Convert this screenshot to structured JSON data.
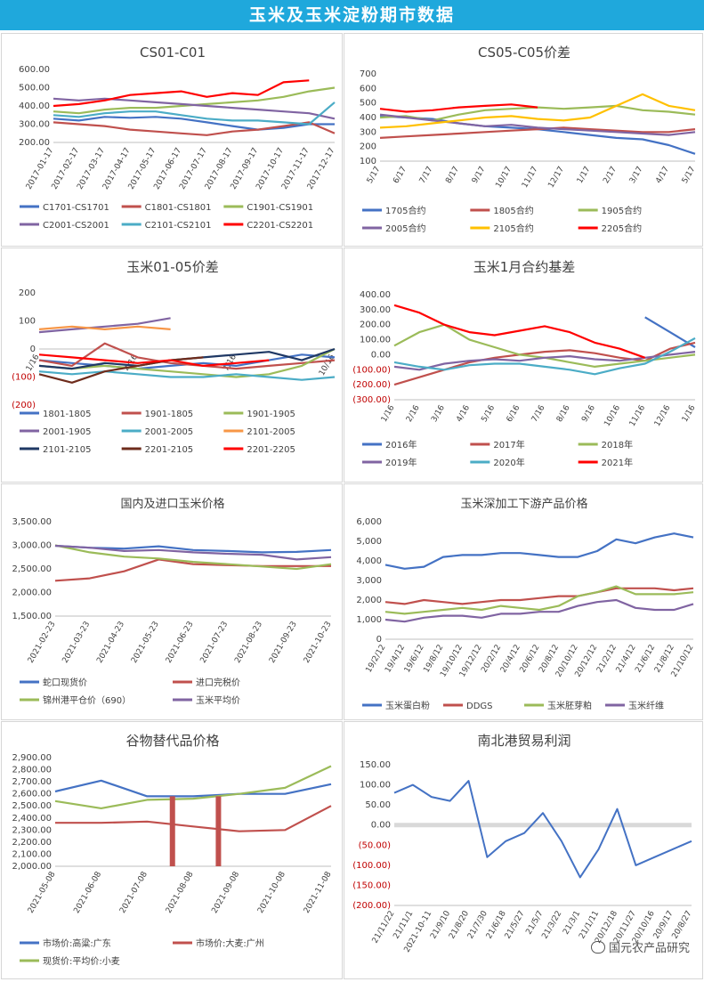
{
  "page": {
    "title": "玉米及玉米淀粉期市数据"
  },
  "watermark": {
    "text": "国元农产品研究"
  },
  "chart_data": [
    {
      "id": "p1",
      "type": "line",
      "title": "CS01-C01",
      "yticks": [
        "600.00",
        "500.00",
        "400.00",
        "300.00",
        "200.00"
      ],
      "ylim": [
        200,
        600
      ],
      "yticks_values": [
        600,
        500,
        400,
        300,
        200
      ],
      "xticks": [
        "2017-01-17",
        "2017-02-17",
        "2017-03-17",
        "2017-04-17",
        "2017-05-17",
        "2017-06-17",
        "2017-07-17",
        "2017-08-17",
        "2017-09-17",
        "2017-10-17",
        "2017-11-17",
        "2017-12-17"
      ],
      "series": [
        {
          "name": "C1701-CS1701",
          "color": "#4472c4",
          "values": [
            330,
            320,
            340,
            335,
            340,
            330,
            310,
            290,
            270,
            280,
            300,
            300
          ]
        },
        {
          "name": "C1801-CS1801",
          "color": "#c0504d",
          "values": [
            310,
            300,
            290,
            270,
            260,
            250,
            240,
            260,
            270,
            290,
            310,
            250
          ]
        },
        {
          "name": "C1901-CS1901",
          "color": "#9bbb59",
          "values": [
            370,
            360,
            380,
            390,
            390,
            400,
            410,
            420,
            430,
            450,
            480,
            500
          ]
        },
        {
          "name": "C2001-CS2001",
          "color": "#8064a2",
          "values": [
            440,
            430,
            440,
            430,
            420,
            410,
            400,
            390,
            380,
            370,
            360,
            330
          ]
        },
        {
          "name": "C2101-CS2101",
          "color": "#4bacc6",
          "values": [
            350,
            340,
            360,
            370,
            370,
            350,
            330,
            320,
            320,
            310,
            300,
            420
          ]
        },
        {
          "name": "C2201-CS2201",
          "color": "#ff0000",
          "values": [
            400,
            410,
            430,
            460,
            470,
            480,
            450,
            470,
            460,
            530,
            540,
            null
          ]
        }
      ]
    },
    {
      "id": "p2",
      "type": "line",
      "title": "CS05-C05价差",
      "yticks": [
        "700",
        "600",
        "500",
        "400",
        "300",
        "200",
        "100"
      ],
      "ylim": [
        100,
        700
      ],
      "yticks_values": [
        700,
        600,
        500,
        400,
        300,
        200,
        100
      ],
      "xticks": [
        "5/17",
        "6/17",
        "7/17",
        "8/17",
        "9/17",
        "10/17",
        "11/17",
        "12/17",
        "1/17",
        "2/17",
        "3/17",
        "4/17",
        "5/17"
      ],
      "series": [
        {
          "name": "1705合约",
          "color": "#4472c4",
          "values": [
            410,
            400,
            390,
            360,
            340,
            330,
            320,
            300,
            280,
            260,
            250,
            210,
            150
          ]
        },
        {
          "name": "1805合约",
          "color": "#c0504d",
          "values": [
            260,
            270,
            280,
            290,
            300,
            310,
            320,
            330,
            320,
            310,
            300,
            300,
            320
          ]
        },
        {
          "name": "1905合约",
          "color": "#9bbb59",
          "values": [
            400,
            410,
            380,
            420,
            450,
            460,
            470,
            460,
            470,
            480,
            450,
            440,
            420
          ]
        },
        {
          "name": "2005合约",
          "color": "#8064a2",
          "values": [
            420,
            400,
            380,
            360,
            340,
            350,
            330,
            320,
            310,
            300,
            290,
            280,
            300
          ]
        },
        {
          "name": "2105合约",
          "color": "#ffc000",
          "values": [
            330,
            340,
            360,
            380,
            400,
            410,
            390,
            380,
            400,
            480,
            560,
            480,
            450
          ]
        },
        {
          "name": "2205合约",
          "color": "#ff0000",
          "values": [
            460,
            440,
            450,
            470,
            480,
            490,
            470,
            null,
            null,
            null,
            null,
            null,
            null
          ]
        }
      ]
    },
    {
      "id": "p3",
      "type": "line",
      "title": "玉米01-05价差",
      "yticks": [
        "200",
        "100",
        "0",
        "(100)",
        "(200)"
      ],
      "ylim": [
        -200,
        200
      ],
      "yticks_values": [
        200,
        100,
        0,
        -100,
        -200
      ],
      "xticks": [
        "1/16",
        "4/16",
        "7/16",
        "10/16"
      ],
      "series": [
        {
          "name": "1801-1805",
          "color": "#4472c4",
          "values": [
            -40,
            -50,
            -60,
            -70,
            -60,
            -50,
            -60,
            -40,
            -20,
            -30
          ]
        },
        {
          "name": "1901-1805",
          "color": "#c0504d",
          "values": [
            -40,
            -60,
            20,
            -30,
            -50,
            -60,
            -70,
            -60,
            -50,
            -40
          ]
        },
        {
          "name": "1901-1905",
          "color": "#9bbb59",
          "values": [
            -60,
            -70,
            -60,
            -70,
            -80,
            -90,
            -100,
            -90,
            -60,
            0
          ]
        },
        {
          "name": "2001-1905",
          "color": "#8064a2",
          "values": [
            60,
            70,
            80,
            90,
            110,
            null,
            null,
            null,
            null,
            null
          ]
        },
        {
          "name": "2001-2005",
          "color": "#4bacc6",
          "values": [
            -80,
            -90,
            -80,
            -90,
            -100,
            -100,
            -90,
            -100,
            -110,
            -100
          ]
        },
        {
          "name": "2101-2005",
          "color": "#f79646",
          "values": [
            70,
            80,
            70,
            80,
            70,
            null,
            null,
            null,
            null,
            null
          ]
        },
        {
          "name": "2101-2105",
          "color": "#1f3864",
          "values": [
            -60,
            -70,
            -50,
            -60,
            -40,
            -30,
            -20,
            -10,
            -40,
            0
          ]
        },
        {
          "name": "2201-2105",
          "color": "#6e2c1c",
          "values": [
            -90,
            -120,
            -80,
            -60,
            -40,
            -30,
            null,
            null,
            null,
            null
          ]
        },
        {
          "name": "2201-2205",
          "color": "#ff0000",
          "values": [
            -20,
            -30,
            -40,
            -50,
            -40,
            -60,
            -50,
            -40,
            null,
            null
          ]
        }
      ]
    },
    {
      "id": "p4",
      "type": "line",
      "title": "玉米1月合约基差",
      "yticks": [
        "400.00",
        "300.00",
        "200.00",
        "100.00",
        "0.00",
        "(100.00)",
        "(200.00)",
        "(300.00)"
      ],
      "ylim": [
        -300,
        400
      ],
      "yticks_values": [
        400,
        300,
        200,
        100,
        0,
        -100,
        -200,
        -300
      ],
      "xticks": [
        "1/16",
        "2/16",
        "3/16",
        "4/16",
        "5/16",
        "6/16",
        "7/16",
        "8/16",
        "9/16",
        "10/16",
        "11/16",
        "12/16",
        "1/16"
      ],
      "series": [
        {
          "name": "2016年",
          "color": "#4472c4",
          "values": [
            null,
            null,
            null,
            null,
            null,
            null,
            null,
            null,
            null,
            null,
            250,
            150,
            50
          ]
        },
        {
          "name": "2017年",
          "color": "#c0504d",
          "values": [
            -200,
            -150,
            -100,
            -50,
            -20,
            0,
            20,
            30,
            10,
            -20,
            -40,
            40,
            80
          ]
        },
        {
          "name": "2018年",
          "color": "#9bbb59",
          "values": [
            60,
            150,
            200,
            100,
            50,
            0,
            -20,
            -50,
            -80,
            -60,
            -40,
            -20,
            0
          ]
        },
        {
          "name": "2019年",
          "color": "#8064a2",
          "values": [
            -80,
            -100,
            -60,
            -40,
            -30,
            -40,
            -20,
            -10,
            -30,
            -40,
            -20,
            0,
            20
          ]
        },
        {
          "name": "2020年",
          "color": "#4bacc6",
          "values": [
            -50,
            -80,
            -100,
            -70,
            -60,
            -60,
            -80,
            -100,
            -130,
            -90,
            -60,
            20,
            110
          ]
        },
        {
          "name": "2021年",
          "color": "#ff0000",
          "values": [
            330,
            280,
            200,
            150,
            130,
            160,
            190,
            150,
            80,
            40,
            -20,
            null,
            null
          ]
        }
      ]
    },
    {
      "id": "p5",
      "type": "line",
      "title": "国内及进口玉米价格",
      "yticks": [
        "3,500.00",
        "3,000.00",
        "2,500.00",
        "2,000.00",
        "1,500.00"
      ],
      "ylim": [
        1500,
        3500
      ],
      "yticks_values": [
        3500,
        3000,
        2500,
        2000,
        1500
      ],
      "xticks": [
        "2021-02-23",
        "2021-03-23",
        "2021-04-23",
        "2021-05-23",
        "2021-06-23",
        "2021-07-23",
        "2021-08-23",
        "2021-09-23",
        "2021-10-23"
      ],
      "series": [
        {
          "name": "蛇口现货价",
          "color": "#4472c4",
          "values": [
            2990,
            2950,
            2930,
            2980,
            2900,
            2880,
            2850,
            2860,
            2900
          ]
        },
        {
          "name": "进口完税价",
          "color": "#c0504d",
          "values": [
            2250,
            2300,
            2450,
            2700,
            2600,
            2580,
            2560,
            2560,
            2560
          ]
        },
        {
          "name": "锦州港平仓价（690）",
          "color": "#9bbb59",
          "values": [
            3000,
            2850,
            2760,
            2720,
            2650,
            2600,
            2550,
            2500,
            2600
          ]
        },
        {
          "name": "玉米平均价",
          "color": "#8064a2",
          "values": [
            2990,
            2950,
            2880,
            2900,
            2850,
            2820,
            2800,
            2700,
            2750
          ]
        }
      ]
    },
    {
      "id": "p6",
      "type": "line",
      "title": "玉米深加工下游产品价格",
      "yticks": [
        "6,000",
        "5,000",
        "4,000",
        "3,000",
        "2,000",
        "1,000",
        "0"
      ],
      "ylim": [
        0,
        6000
      ],
      "yticks_values": [
        6000,
        5000,
        4000,
        3000,
        2000,
        1000,
        0
      ],
      "xticks": [
        "19/2/12",
        "19/4/12",
        "19/6/12",
        "19/8/12",
        "19/10/12",
        "19/12/12",
        "20/2/12",
        "20/4/12",
        "20/6/12",
        "20/8/12",
        "20/10/12",
        "20/12/12",
        "21/2/12",
        "21/4/12",
        "21/6/12",
        "21/8/12",
        "21/10/12"
      ],
      "series": [
        {
          "name": "玉米蛋白粉",
          "color": "#4472c4",
          "values": [
            3800,
            3600,
            3700,
            4200,
            4300,
            4300,
            4400,
            4400,
            4300,
            4200,
            4200,
            4500,
            5100,
            4900,
            5200,
            5400,
            5200
          ]
        },
        {
          "name": "DDGS",
          "color": "#c0504d",
          "values": [
            1900,
            1800,
            2000,
            1900,
            1800,
            1900,
            2000,
            2000,
            2100,
            2200,
            2200,
            2400,
            2600,
            2600,
            2600,
            2500,
            2600
          ]
        },
        {
          "name": "玉米胚芽粕",
          "color": "#9bbb59",
          "values": [
            1400,
            1300,
            1400,
            1500,
            1600,
            1500,
            1700,
            1600,
            1500,
            1700,
            2200,
            2400,
            2700,
            2300,
            2300,
            2300,
            2400
          ]
        },
        {
          "name": "玉米纤维",
          "color": "#8064a2",
          "values": [
            1000,
            900,
            1100,
            1200,
            1200,
            1100,
            1300,
            1300,
            1400,
            1400,
            1700,
            1900,
            2000,
            1600,
            1500,
            1500,
            1800
          ]
        }
      ]
    },
    {
      "id": "p7",
      "type": "line",
      "title": "谷物替代品价格",
      "yticks": [
        "2,900.00",
        "2,800.00",
        "2,700.00",
        "2,600.00",
        "2,500.00",
        "2,400.00",
        "2,300.00",
        "2,200.00",
        "2,100.00",
        "2,000.00"
      ],
      "ylim": [
        2000,
        2900
      ],
      "yticks_values": [
        2900,
        2800,
        2700,
        2600,
        2500,
        2400,
        2300,
        2200,
        2100,
        2000
      ],
      "xticks": [
        "2021-05-08",
        "2021-06-08",
        "2021-07-08",
        "2021-08-08",
        "2021-09-08",
        "2021-10-08",
        "2021-11-08"
      ],
      "series": [
        {
          "name": "市场价:高粱:广东",
          "color": "#4472c4",
          "values": [
            2620,
            2710,
            2580,
            2580,
            2600,
            2600,
            2680
          ]
        },
        {
          "name": "市场价:大麦:广州",
          "color": "#c0504d",
          "values": [
            2360,
            2360,
            2370,
            2330,
            2290,
            2300,
            2500
          ]
        },
        {
          "name": "现货价:平均价:小麦",
          "color": "#9bbb59",
          "values": [
            2540,
            2480,
            2550,
            2560,
            2600,
            2650,
            2830
          ]
        }
      ]
    },
    {
      "id": "p8",
      "type": "line",
      "title": "南北港贸易利润",
      "yticks": [
        "150.00",
        "100.00",
        "50.00",
        "0.00",
        "(50.00)",
        "(100.00)",
        "(150.00)",
        "(200.00)"
      ],
      "ylim": [
        -200,
        150
      ],
      "yticks_values": [
        150,
        100,
        50,
        0,
        -50,
        -100,
        -150,
        -200
      ],
      "xticks": [
        "21/11/22",
        "21/11/1",
        "2021-10-11",
        "21/9/10",
        "21/8/20",
        "21/7/30",
        "21/6/18",
        "21/5/27",
        "21/5/7",
        "21/3/22",
        "21/3/1",
        "21/1/11",
        "20/12/18",
        "20/11/27",
        "20/10/16",
        "20/9/17",
        "20/8/27"
      ],
      "series": [
        {
          "name": "",
          "color": "#4472c4",
          "values": [
            80,
            100,
            70,
            60,
            110,
            -80,
            -40,
            -20,
            30,
            -40,
            -130,
            -60,
            40,
            -100,
            -80,
            -60,
            -40
          ]
        }
      ]
    }
  ]
}
